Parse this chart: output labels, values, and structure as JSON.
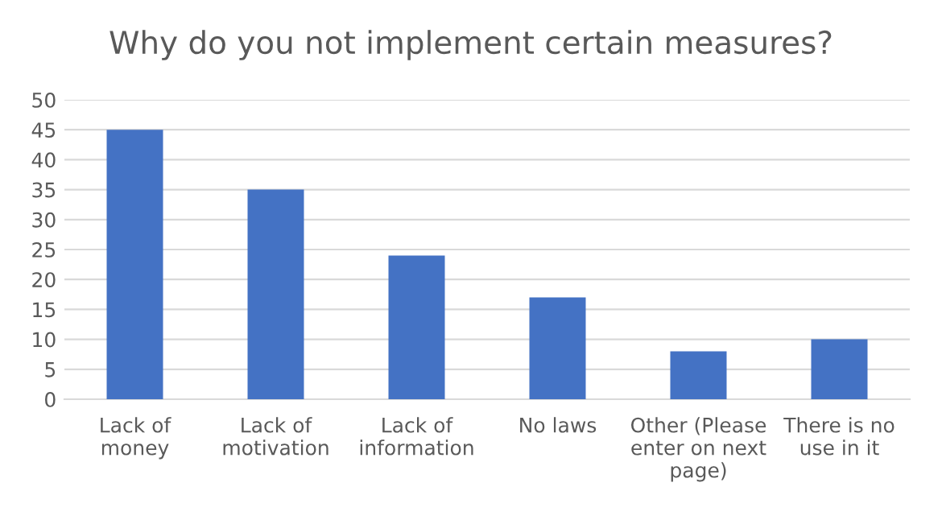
{
  "chart_data": {
    "type": "bar",
    "title": "Why do you not implement certain measures?",
    "categories": [
      "Lack of\nmoney",
      "Lack of\nmotivation",
      "Lack of\ninformation",
      "No laws",
      "Other (Please\nenter on next\npage)",
      "There is no\nuse in it"
    ],
    "values": [
      45,
      35,
      24,
      17,
      8,
      10
    ],
    "color": "#4472c4",
    "ylim": [
      0,
      50
    ],
    "yticks": [
      0,
      5,
      10,
      15,
      20,
      25,
      30,
      35,
      40,
      45,
      50
    ],
    "grid": "y",
    "legend": false
  }
}
